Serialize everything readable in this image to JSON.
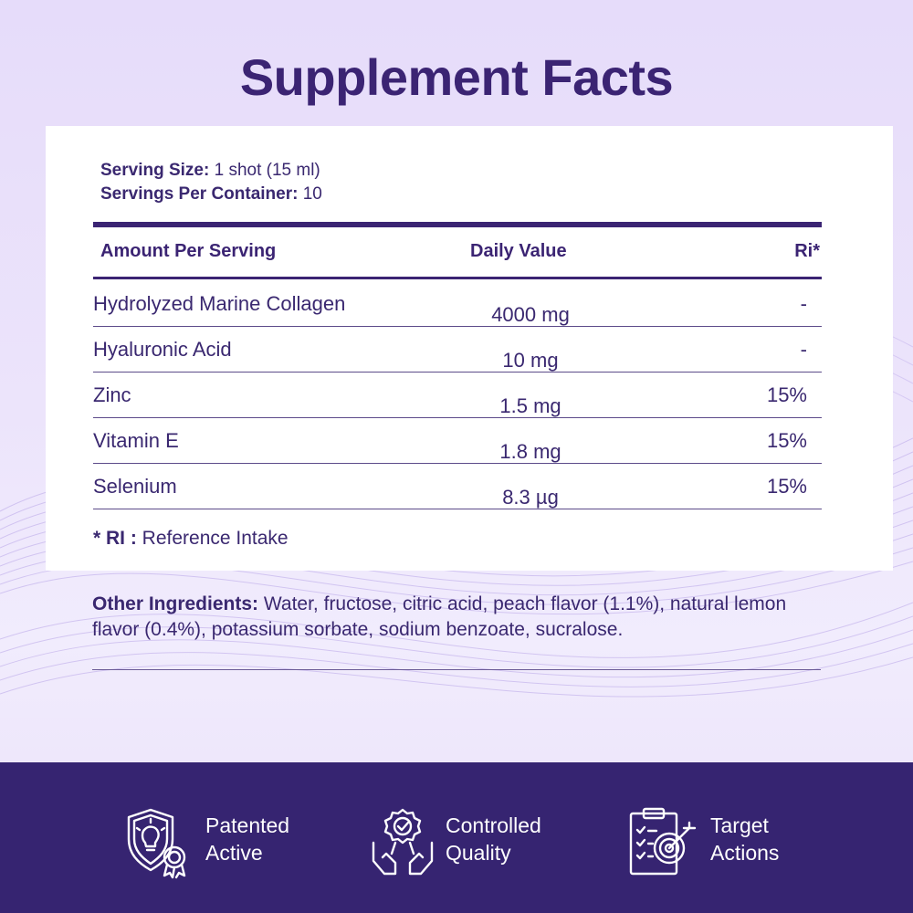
{
  "title": "Supplement Facts",
  "serving": {
    "size_label": "Serving Size:",
    "size_value": " 1 shot (15 ml)",
    "per_container_label": "Servings Per Container:",
    "per_container_value": " 10"
  },
  "table": {
    "headers": {
      "amount": "Amount Per Serving",
      "daily": "Daily Value",
      "ri": "Ri*"
    },
    "rows": [
      {
        "name": "Hydrolyzed Marine Collagen",
        "value": "4000 mg",
        "ri": "-"
      },
      {
        "name": "Hyaluronic Acid",
        "value": "10 mg",
        "ri": "-"
      },
      {
        "name": "Zinc",
        "value": "1.5 mg",
        "ri": "15%"
      },
      {
        "name": "Vitamin E",
        "value": "1.8 mg",
        "ri": "15%"
      },
      {
        "name": "Selenium",
        "value": "8.3 µg",
        "ri": "15%"
      }
    ]
  },
  "footnote": {
    "label": "* RI :",
    "text": " Reference Intake"
  },
  "other_ingredients": {
    "label": "Other Ingredients:",
    "text": " Water, fructose, citric acid, peach flavor (1.1%), natural lemon flavor (0.4%), potassium sorbate, sodium benzoate, sucralose."
  },
  "badges": [
    {
      "icon": "shield-bulb-award-icon",
      "line1": "Patented",
      "line2": "Active"
    },
    {
      "icon": "hands-quality-medal-icon",
      "line1": "Controlled",
      "line2": "Quality"
    },
    {
      "icon": "clipboard-target-icon",
      "line1": "Target",
      "line2": "Actions"
    }
  ],
  "colors": {
    "primary": "#3b2473",
    "footer_bg": "#362471",
    "card_bg": "#ffffff",
    "page_bg": "#e9e1fa"
  }
}
